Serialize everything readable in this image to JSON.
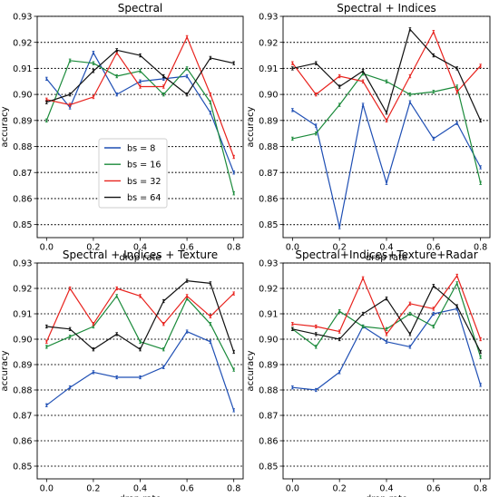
{
  "chart_data": [
    {
      "type": "line",
      "title": "Spectral",
      "xlabel": "drop rate",
      "ylabel": "accuracy",
      "xlim": [
        -0.04,
        0.84
      ],
      "ylim": [
        0.845,
        0.93
      ],
      "xticks": [
        "0.0",
        "0.2",
        "0.4",
        "0.6",
        "0.8"
      ],
      "yticks": [
        "0.85",
        "0.86",
        "0.87",
        "0.88",
        "0.89",
        "0.90",
        "0.91",
        "0.92",
        "0.93"
      ],
      "grid": "horizontal-dotted",
      "legend": "lower-left",
      "x": [
        0.0,
        0.1,
        0.2,
        0.3,
        0.4,
        0.5,
        0.6,
        0.7,
        0.8
      ],
      "series": [
        {
          "name": "bs = 8",
          "color": "#1f4fb4",
          "values": [
            0.906,
            0.895,
            0.916,
            0.9,
            0.905,
            0.906,
            0.907,
            0.893,
            0.87
          ]
        },
        {
          "name": "bs = 16",
          "color": "#1a8a3a",
          "values": [
            0.89,
            0.913,
            0.912,
            0.907,
            0.909,
            0.9,
            0.91,
            0.897,
            0.862
          ]
        },
        {
          "name": "bs = 32",
          "color": "#e8231e",
          "values": [
            0.898,
            0.896,
            0.899,
            0.916,
            0.903,
            0.903,
            0.922,
            0.9,
            0.876
          ]
        },
        {
          "name": "bs = 64",
          "color": "#111111",
          "values": [
            0.897,
            0.9,
            0.909,
            0.917,
            0.915,
            0.907,
            0.9,
            0.914,
            0.912
          ]
        }
      ]
    },
    {
      "type": "line",
      "title": "Spectral + Indices",
      "xlabel": "drop rate",
      "ylabel": "accuracy",
      "xlim": [
        -0.04,
        0.84
      ],
      "ylim": [
        0.845,
        0.93
      ],
      "xticks": [
        "0.0",
        "0.2",
        "0.4",
        "0.6",
        "0.8"
      ],
      "yticks": [
        "0.85",
        "0.86",
        "0.87",
        "0.88",
        "0.89",
        "0.90",
        "0.91",
        "0.92",
        "0.93"
      ],
      "grid": "horizontal-dotted",
      "x": [
        0.0,
        0.1,
        0.2,
        0.3,
        0.4,
        0.5,
        0.6,
        0.7,
        0.8
      ],
      "series": [
        {
          "name": "bs = 8",
          "color": "#1f4fb4",
          "values": [
            0.894,
            0.888,
            0.849,
            0.896,
            0.866,
            0.897,
            0.883,
            0.889,
            0.872
          ]
        },
        {
          "name": "bs = 16",
          "color": "#1a8a3a",
          "values": [
            0.883,
            0.885,
            0.896,
            0.908,
            0.905,
            0.9,
            0.901,
            0.903,
            0.866
          ]
        },
        {
          "name": "bs = 32",
          "color": "#e8231e",
          "values": [
            0.912,
            0.9,
            0.907,
            0.905,
            0.89,
            0.907,
            0.924,
            0.901,
            0.911
          ]
        },
        {
          "name": "bs = 64",
          "color": "#111111",
          "values": [
            0.91,
            0.912,
            0.903,
            0.909,
            0.893,
            0.925,
            0.915,
            0.91,
            0.89
          ]
        }
      ]
    },
    {
      "type": "line",
      "title": "Spectral + Indices + Texture",
      "xlabel": "drop rate",
      "ylabel": "accuracy",
      "xlim": [
        -0.04,
        0.84
      ],
      "ylim": [
        0.845,
        0.93
      ],
      "xticks": [
        "0.0",
        "0.2",
        "0.4",
        "0.6",
        "0.8"
      ],
      "yticks": [
        "0.85",
        "0.86",
        "0.87",
        "0.88",
        "0.89",
        "0.90",
        "0.91",
        "0.92",
        "0.93"
      ],
      "grid": "horizontal-dotted",
      "x": [
        0.0,
        0.1,
        0.2,
        0.3,
        0.4,
        0.5,
        0.6,
        0.7,
        0.8
      ],
      "series": [
        {
          "name": "bs = 8",
          "color": "#1f4fb4",
          "values": [
            0.874,
            0.881,
            0.887,
            0.885,
            0.885,
            0.889,
            0.903,
            0.899,
            0.872
          ]
        },
        {
          "name": "bs = 16",
          "color": "#1a8a3a",
          "values": [
            0.897,
            0.901,
            0.905,
            0.917,
            0.899,
            0.896,
            0.916,
            0.906,
            0.888
          ]
        },
        {
          "name": "bs = 32",
          "color": "#e8231e",
          "values": [
            0.899,
            0.92,
            0.906,
            0.92,
            0.917,
            0.906,
            0.917,
            0.909,
            0.918
          ]
        },
        {
          "name": "bs = 64",
          "color": "#111111",
          "values": [
            0.905,
            0.904,
            0.896,
            0.902,
            0.896,
            0.915,
            0.923,
            0.922,
            0.895
          ]
        }
      ]
    },
    {
      "type": "line",
      "title": "Spectral+Indices+Texture+Radar",
      "xlabel": "drop rate",
      "ylabel": "accuracy",
      "xlim": [
        -0.04,
        0.84
      ],
      "ylim": [
        0.845,
        0.93
      ],
      "xticks": [
        "0.0",
        "0.2",
        "0.4",
        "0.6",
        "0.8"
      ],
      "yticks": [
        "0.85",
        "0.86",
        "0.87",
        "0.88",
        "0.89",
        "0.90",
        "0.91",
        "0.92",
        "0.93"
      ],
      "grid": "horizontal-dotted",
      "x": [
        0.0,
        0.1,
        0.2,
        0.3,
        0.4,
        0.5,
        0.6,
        0.7,
        0.8
      ],
      "series": [
        {
          "name": "bs = 8",
          "color": "#1f4fb4",
          "values": [
            0.881,
            0.88,
            0.887,
            0.905,
            0.899,
            0.897,
            0.91,
            0.912,
            0.882
          ]
        },
        {
          "name": "bs = 16",
          "color": "#1a8a3a",
          "values": [
            0.904,
            0.897,
            0.911,
            0.905,
            0.904,
            0.91,
            0.905,
            0.922,
            0.893
          ]
        },
        {
          "name": "bs = 32",
          "color": "#e8231e",
          "values": [
            0.906,
            0.905,
            0.903,
            0.924,
            0.902,
            0.914,
            0.912,
            0.925,
            0.9
          ]
        },
        {
          "name": "bs = 64",
          "color": "#111111",
          "values": [
            0.904,
            0.902,
            0.9,
            0.91,
            0.916,
            0.902,
            0.921,
            0.913,
            0.895
          ]
        }
      ]
    }
  ]
}
